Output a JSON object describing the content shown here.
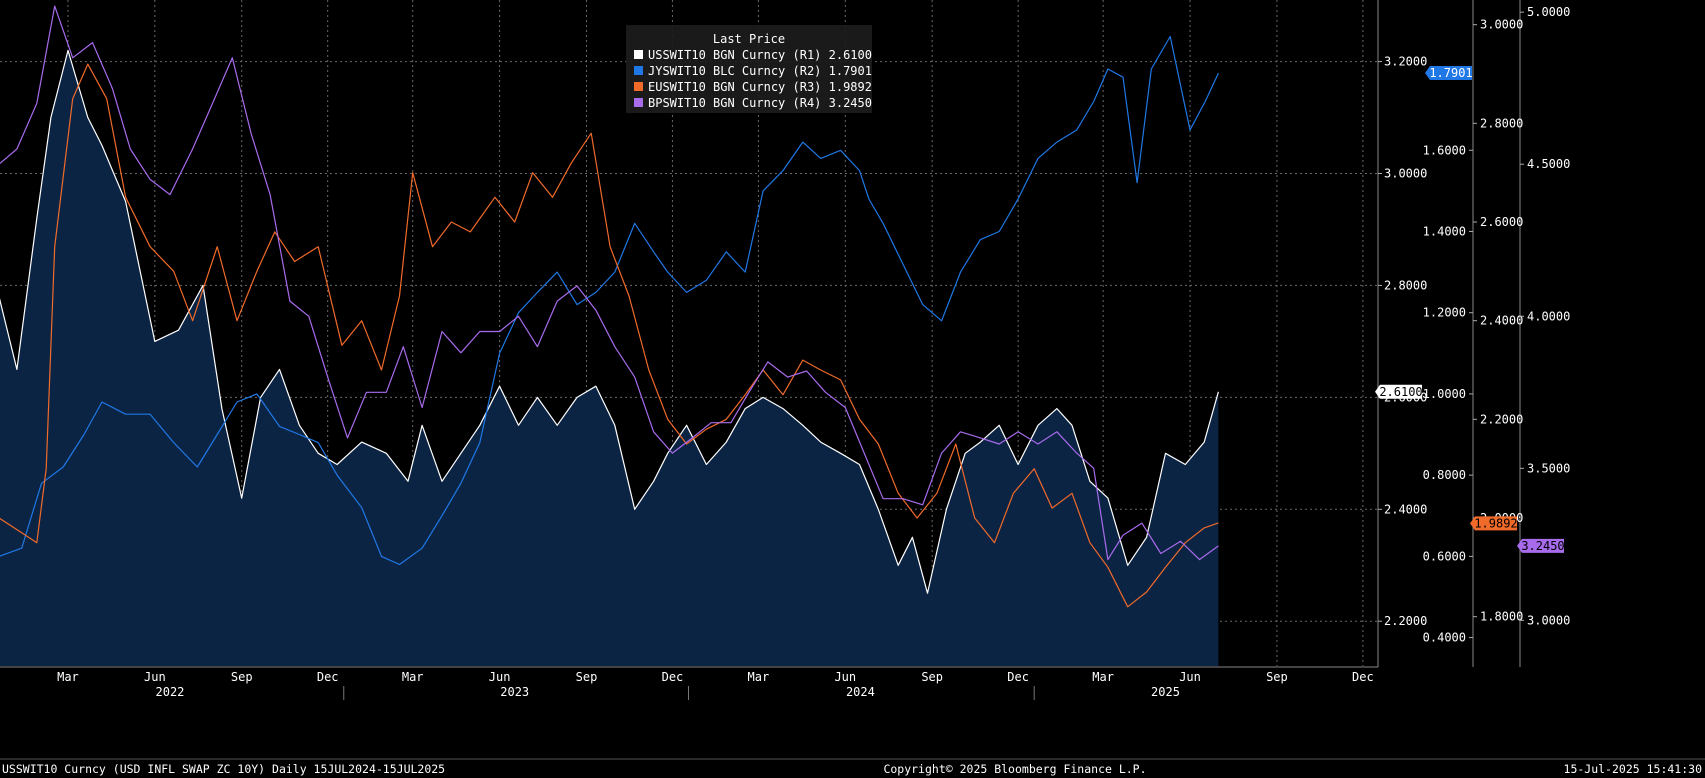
{
  "chart_data": {
    "type": "line",
    "legend": {
      "title": "Last Price",
      "placement": "top-center",
      "entries": [
        {
          "label": "USSWIT10 BGN Curncy  (R1) 2.6100",
          "color": "#ffffff"
        },
        {
          "label": "JYSWIT10 BLC Curncy  (R2) 1.7901",
          "color": "#1f78e6"
        },
        {
          "label": "EUSWIT10 BGN Curncy  (R3) 1.9892",
          "color": "#f06a2a"
        },
        {
          "label": "BPSWIT10 BGN Curncy  (R4) 3.2450",
          "color": "#a86bec"
        }
      ]
    },
    "grid": true,
    "x_axis": {
      "months": [
        "Mar",
        "Jun",
        "Sep",
        "Dec",
        "Mar",
        "Jun",
        "Sep",
        "Dec",
        "Mar",
        "Jun",
        "Sep",
        "Dec",
        "Mar",
        "Jun",
        "Sep",
        "Dec"
      ],
      "years": [
        "2022",
        "2023",
        "2024",
        "2025"
      ],
      "start": "2022-01-01",
      "end": "2025-12-31"
    },
    "axes": {
      "R1": {
        "ticks": [
          "3.2000",
          "3.0000",
          "2.8000",
          "2.6000",
          "2.4000",
          "2.2000"
        ],
        "values": [
          3.2,
          3.0,
          2.8,
          2.6,
          2.4,
          2.2
        ],
        "range": [
          2.12,
          3.31
        ]
      },
      "R2": {
        "ticks": [
          "1.6000",
          "1.4000",
          "1.2000",
          "1.0000",
          "0.8000",
          "0.6000",
          "0.4000"
        ],
        "values": [
          1.6,
          1.4,
          1.2,
          1.0,
          0.8,
          0.6,
          0.4
        ],
        "range": [
          0.33,
          1.97
        ]
      },
      "R3": {
        "ticks": [
          "3.0000",
          "2.8000",
          "2.6000",
          "2.4000",
          "2.2000",
          "2.0000",
          "1.8000"
        ],
        "values": [
          3.0,
          2.8,
          2.6,
          2.4,
          2.2,
          2.0,
          1.8
        ],
        "range": [
          1.7,
          3.05
        ]
      },
      "R4": {
        "ticks": [
          "5.0000",
          "4.5000",
          "4.0000",
          "3.5000",
          "3.0000"
        ],
        "values": [
          5.0,
          4.5,
          4.0,
          3.5,
          3.0
        ],
        "range": [
          2.85,
          5.04
        ]
      }
    },
    "last_value_tags": [
      {
        "text": "1.7901",
        "axis": "R2",
        "value": 1.7901,
        "bg": "#1f78e6",
        "fg": "#ffffff"
      },
      {
        "text": "2.6100",
        "axis": "R1",
        "value": 2.61,
        "bg": "#ffffff",
        "fg": "#000000"
      },
      {
        "text": "1.9892",
        "axis": "R3",
        "value": 1.9892,
        "bg": "#f06a2a",
        "fg": "#000000"
      },
      {
        "text": "3.2450",
        "axis": "R4",
        "value": 3.245,
        "bg": "#a86bec",
        "fg": "#000000"
      }
    ],
    "series": [
      {
        "name": "USSWIT10 BGN Curncy",
        "axis": "R1",
        "color": "#ffffff",
        "area": true,
        "x": [
          "2022-01-01",
          "2022-01-20",
          "2022-02-10",
          "2022-02-25",
          "2022-03-15",
          "2022-04-05",
          "2022-04-20",
          "2022-05-15",
          "2022-06-15",
          "2022-07-10",
          "2022-08-05",
          "2022-08-25",
          "2022-09-15",
          "2022-10-05",
          "2022-10-25",
          "2022-11-15",
          "2022-12-05",
          "2022-12-25",
          "2023-01-20",
          "2023-02-15",
          "2023-03-10",
          "2023-03-25",
          "2023-04-15",
          "2023-05-05",
          "2023-05-25",
          "2023-06-15",
          "2023-07-05",
          "2023-07-25",
          "2023-08-15",
          "2023-09-05",
          "2023-09-25",
          "2023-10-15",
          "2023-11-05",
          "2023-11-25",
          "2023-12-10",
          "2023-12-30",
          "2024-01-20",
          "2024-02-10",
          "2024-03-01",
          "2024-03-20",
          "2024-04-10",
          "2024-05-01",
          "2024-05-20",
          "2024-06-10",
          "2024-06-30",
          "2024-07-20",
          "2024-08-10",
          "2024-08-25",
          "2024-09-10",
          "2024-09-30",
          "2024-10-20",
          "2024-11-05",
          "2024-11-25",
          "2024-12-15",
          "2025-01-05",
          "2025-01-25",
          "2025-02-10",
          "2025-03-01",
          "2025-03-20",
          "2025-04-10",
          "2025-04-30",
          "2025-05-20",
          "2025-06-10",
          "2025-06-30",
          "2025-07-15"
        ],
        "y": [
          2.78,
          2.65,
          2.92,
          3.1,
          3.22,
          3.1,
          3.05,
          2.95,
          2.7,
          2.72,
          2.8,
          2.58,
          2.42,
          2.6,
          2.65,
          2.55,
          2.5,
          2.48,
          2.52,
          2.5,
          2.45,
          2.55,
          2.45,
          2.5,
          2.55,
          2.62,
          2.55,
          2.6,
          2.55,
          2.6,
          2.62,
          2.55,
          2.4,
          2.45,
          2.5,
          2.55,
          2.48,
          2.52,
          2.58,
          2.6,
          2.58,
          2.55,
          2.52,
          2.5,
          2.48,
          2.4,
          2.3,
          2.35,
          2.25,
          2.4,
          2.5,
          2.52,
          2.55,
          2.48,
          2.55,
          2.58,
          2.55,
          2.45,
          2.42,
          2.3,
          2.35,
          2.5,
          2.48,
          2.52,
          2.61
        ]
      },
      {
        "name": "JYSWIT10 BLC Curncy",
        "axis": "R2",
        "color": "#1f78e6",
        "area": false,
        "x": [
          "2022-01-01",
          "2022-01-25",
          "2022-02-15",
          "2022-03-10",
          "2022-04-01",
          "2022-04-20",
          "2022-05-15",
          "2022-06-10",
          "2022-07-05",
          "2022-07-30",
          "2022-08-20",
          "2022-09-10",
          "2022-10-01",
          "2022-10-25",
          "2022-11-15",
          "2022-12-05",
          "2022-12-25",
          "2023-01-20",
          "2023-02-10",
          "2023-03-01",
          "2023-03-25",
          "2023-04-15",
          "2023-05-05",
          "2023-05-25",
          "2023-06-15",
          "2023-07-05",
          "2023-07-25",
          "2023-08-15",
          "2023-09-05",
          "2023-09-25",
          "2023-10-15",
          "2023-11-05",
          "2023-11-25",
          "2023-12-10",
          "2023-12-30",
          "2024-01-20",
          "2024-02-10",
          "2024-03-01",
          "2024-03-20",
          "2024-04-10",
          "2024-05-01",
          "2024-05-20",
          "2024-06-10",
          "2024-06-30",
          "2024-07-10",
          "2024-07-25",
          "2024-08-15",
          "2024-09-05",
          "2024-09-25",
          "2024-10-15",
          "2024-11-05",
          "2024-11-25",
          "2024-12-15",
          "2025-01-05",
          "2025-01-25",
          "2025-02-15",
          "2025-03-05",
          "2025-03-20",
          "2025-04-05",
          "2025-04-20",
          "2025-05-05",
          "2025-05-25",
          "2025-06-15",
          "2025-07-01",
          "2025-07-15"
        ],
        "y": [
          0.6,
          0.62,
          0.78,
          0.82,
          0.9,
          0.98,
          0.95,
          0.95,
          0.88,
          0.82,
          0.9,
          0.98,
          1.0,
          0.92,
          0.9,
          0.88,
          0.8,
          0.72,
          0.6,
          0.58,
          0.62,
          0.7,
          0.78,
          0.88,
          1.1,
          1.2,
          1.25,
          1.3,
          1.22,
          1.25,
          1.3,
          1.42,
          1.35,
          1.3,
          1.25,
          1.28,
          1.35,
          1.3,
          1.5,
          1.55,
          1.62,
          1.58,
          1.6,
          1.55,
          1.48,
          1.42,
          1.32,
          1.22,
          1.18,
          1.3,
          1.38,
          1.4,
          1.48,
          1.58,
          1.62,
          1.65,
          1.72,
          1.8,
          1.78,
          1.52,
          1.8,
          1.88,
          1.65,
          1.72,
          1.79
        ]
      },
      {
        "name": "EUSWIT10 BGN Curncy",
        "axis": "R3",
        "color": "#f06a2a",
        "area": false,
        "x": [
          "2022-01-01",
          "2022-01-25",
          "2022-02-10",
          "2022-02-20",
          "2022-03-01",
          "2022-03-20",
          "2022-04-05",
          "2022-04-25",
          "2022-05-15",
          "2022-06-10",
          "2022-07-05",
          "2022-07-25",
          "2022-08-20",
          "2022-09-10",
          "2022-10-01",
          "2022-10-20",
          "2022-11-10",
          "2022-12-05",
          "2022-12-30",
          "2023-01-20",
          "2023-02-10",
          "2023-03-01",
          "2023-03-15",
          "2023-04-05",
          "2023-04-25",
          "2023-05-15",
          "2023-06-10",
          "2023-07-01",
          "2023-07-20",
          "2023-08-10",
          "2023-08-30",
          "2023-09-20",
          "2023-10-10",
          "2023-10-30",
          "2023-11-20",
          "2023-12-10",
          "2023-12-30",
          "2024-01-20",
          "2024-02-10",
          "2024-03-01",
          "2024-03-20",
          "2024-04-10",
          "2024-05-01",
          "2024-05-20",
          "2024-06-10",
          "2024-06-30",
          "2024-07-20",
          "2024-08-10",
          "2024-08-30",
          "2024-09-20",
          "2024-10-10",
          "2024-10-30",
          "2024-11-20",
          "2024-12-10",
          "2025-01-01",
          "2025-01-20",
          "2025-02-10",
          "2025-03-01",
          "2025-03-20",
          "2025-04-10",
          "2025-04-30",
          "2025-05-20",
          "2025-06-10",
          "2025-06-30",
          "2025-07-15"
        ],
        "y": [
          2.0,
          1.97,
          1.95,
          2.1,
          2.55,
          2.85,
          2.92,
          2.85,
          2.65,
          2.55,
          2.5,
          2.4,
          2.55,
          2.4,
          2.5,
          2.58,
          2.52,
          2.55,
          2.35,
          2.4,
          2.3,
          2.45,
          2.7,
          2.55,
          2.6,
          2.58,
          2.65,
          2.6,
          2.7,
          2.65,
          2.72,
          2.78,
          2.55,
          2.45,
          2.3,
          2.2,
          2.15,
          2.18,
          2.2,
          2.25,
          2.3,
          2.25,
          2.32,
          2.3,
          2.28,
          2.2,
          2.15,
          2.05,
          2.0,
          2.05,
          2.15,
          2.0,
          1.95,
          2.05,
          2.1,
          2.02,
          2.05,
          1.95,
          1.9,
          1.82,
          1.85,
          1.9,
          1.95,
          1.98,
          1.99
        ]
      },
      {
        "name": "BPSWIT10 BGN Curncy",
        "axis": "R4",
        "color": "#a86bec",
        "area": false,
        "x": [
          "2022-01-01",
          "2022-01-20",
          "2022-02-10",
          "2022-03-01",
          "2022-03-20",
          "2022-04-10",
          "2022-05-01",
          "2022-05-20",
          "2022-06-10",
          "2022-07-01",
          "2022-07-25",
          "2022-08-15",
          "2022-09-05",
          "2022-09-25",
          "2022-10-15",
          "2022-11-05",
          "2022-11-25",
          "2022-12-15",
          "2023-01-05",
          "2023-01-25",
          "2023-02-15",
          "2023-03-05",
          "2023-03-25",
          "2023-04-15",
          "2023-05-05",
          "2023-05-25",
          "2023-06-15",
          "2023-07-05",
          "2023-07-25",
          "2023-08-15",
          "2023-09-05",
          "2023-09-25",
          "2023-10-15",
          "2023-11-05",
          "2023-11-25",
          "2023-12-15",
          "2024-01-05",
          "2024-01-25",
          "2024-02-15",
          "2024-03-05",
          "2024-03-25",
          "2024-04-15",
          "2024-05-05",
          "2024-05-25",
          "2024-06-15",
          "2024-07-05",
          "2024-07-25",
          "2024-08-15",
          "2024-09-05",
          "2024-09-25",
          "2024-10-15",
          "2024-11-05",
          "2024-11-25",
          "2024-12-15",
          "2025-01-05",
          "2025-01-25",
          "2025-02-15",
          "2025-03-05",
          "2025-03-20",
          "2025-04-05",
          "2025-04-25",
          "2025-05-15",
          "2025-06-05",
          "2025-06-25",
          "2025-07-15"
        ],
        "y": [
          4.5,
          4.55,
          4.7,
          5.02,
          4.85,
          4.9,
          4.75,
          4.55,
          4.45,
          4.4,
          4.55,
          4.7,
          4.85,
          4.6,
          4.4,
          4.05,
          4.0,
          3.8,
          3.6,
          3.75,
          3.75,
          3.9,
          3.7,
          3.95,
          3.88,
          3.95,
          3.95,
          4.0,
          3.9,
          4.05,
          4.1,
          4.02,
          3.9,
          3.8,
          3.62,
          3.55,
          3.6,
          3.65,
          3.65,
          3.75,
          3.85,
          3.8,
          3.82,
          3.75,
          3.7,
          3.55,
          3.4,
          3.4,
          3.38,
          3.55,
          3.62,
          3.6,
          3.58,
          3.62,
          3.58,
          3.62,
          3.55,
          3.5,
          3.2,
          3.28,
          3.32,
          3.22,
          3.26,
          3.2,
          3.245
        ]
      }
    ]
  },
  "footer": {
    "left": "USSWIT10 Curncy (USD INFL SWAP ZC 10Y)  Daily 15JUL2024-15JUL2025",
    "center": "Copyright© 2025 Bloomberg Finance L.P.",
    "right": "15-Jul-2025 15:41:30"
  }
}
